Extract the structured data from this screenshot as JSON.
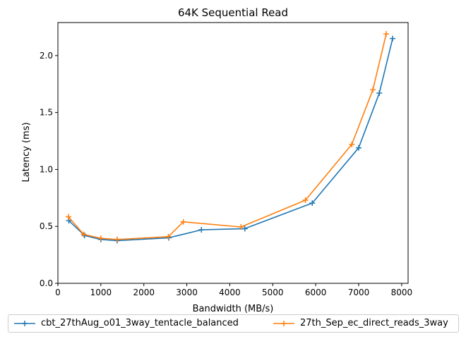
{
  "chart_data": {
    "type": "line",
    "title": "64K  Sequential Read",
    "xlabel": "Bandwidth (MB/s)",
    "ylabel": "Latency (ms)",
    "xlim": [
      0,
      8150
    ],
    "ylim": [
      0,
      2.29
    ],
    "xticks": [
      0,
      1000,
      2000,
      3000,
      4000,
      5000,
      6000,
      7000,
      8000
    ],
    "yticks": [
      0.0,
      0.5,
      1.0,
      1.5,
      2.0
    ],
    "xtick_labels": [
      "0",
      "1000",
      "2000",
      "3000",
      "4000",
      "5000",
      "6000",
      "7000",
      "8000"
    ],
    "ytick_labels": [
      "0.0",
      "0.5",
      "1.0",
      "1.5",
      "2.0"
    ],
    "grid": false,
    "legend_position": "below",
    "marker": "plus",
    "series": [
      {
        "name": "cbt_27thAug_o01_3way_tentacle_balanced",
        "color": "#1f77b4",
        "x": [
          255,
          620,
          1000,
          1380,
          2580,
          3340,
          4350,
          5920,
          7000,
          7480,
          7790
        ],
        "y": [
          0.55,
          0.42,
          0.385,
          0.375,
          0.4,
          0.47,
          0.48,
          0.705,
          1.19,
          1.67,
          2.15
        ]
      },
      {
        "name": "27th_Sep_ec_direct_reads_3way",
        "color": "#ff7f0e",
        "x": [
          245,
          600,
          1000,
          1380,
          2570,
          2920,
          4260,
          5760,
          6840,
          7330,
          7640
        ],
        "y": [
          0.585,
          0.43,
          0.395,
          0.385,
          0.41,
          0.54,
          0.495,
          0.73,
          1.22,
          1.7,
          2.19
        ]
      }
    ]
  }
}
